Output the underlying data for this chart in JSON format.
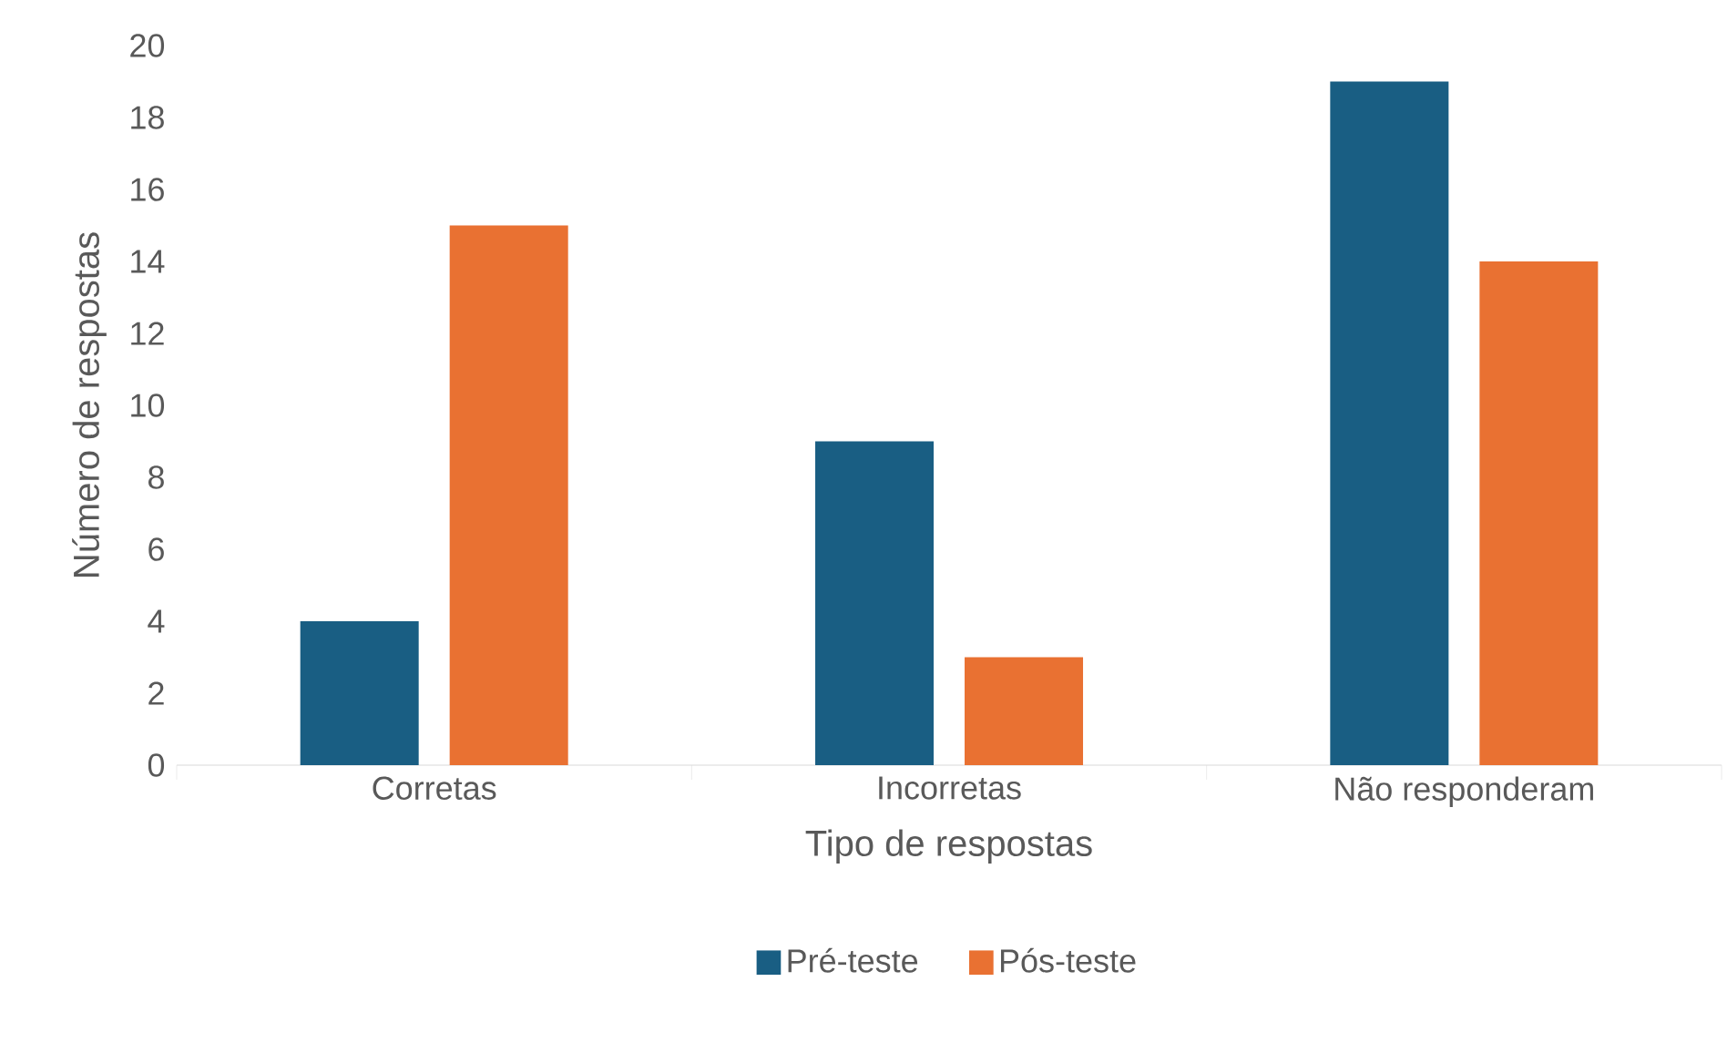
{
  "chart_data": {
    "type": "bar",
    "xlabel": "Tipo de respostas",
    "ylabel": "Número de respostas",
    "categories": [
      "Corretas",
      "Incorretas",
      "Não responderam"
    ],
    "series": [
      {
        "name": "Pré-teste",
        "color": "#195e83",
        "values": [
          4,
          9,
          19
        ]
      },
      {
        "name": "Pós-teste",
        "color": "#e97132",
        "values": [
          15,
          3,
          14
        ]
      }
    ],
    "ylim": [
      0,
      20
    ],
    "yticks": [
      0,
      2,
      4,
      6,
      8,
      10,
      12,
      14,
      16,
      18,
      20
    ],
    "legend": "bottom"
  }
}
